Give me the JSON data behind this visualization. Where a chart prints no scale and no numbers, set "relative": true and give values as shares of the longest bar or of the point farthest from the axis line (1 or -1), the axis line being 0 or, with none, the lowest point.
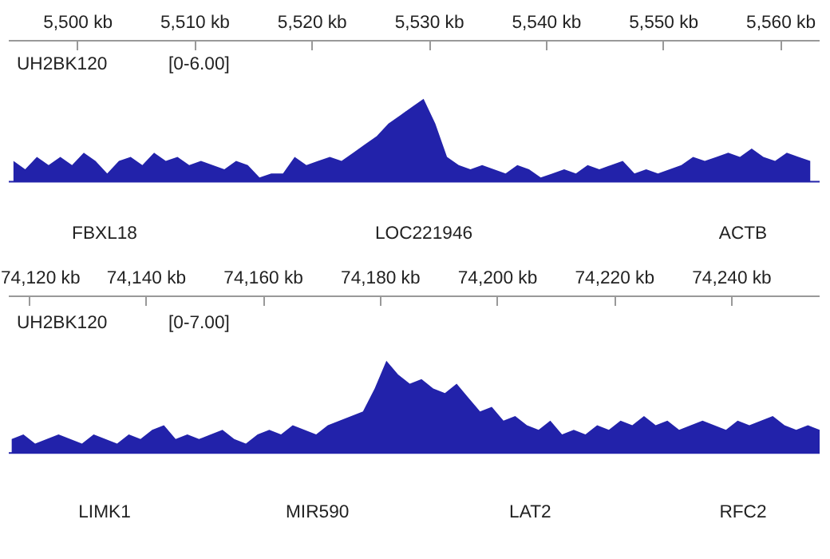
{
  "chart_data": [
    {
      "type": "area",
      "title": "UH2BK120",
      "relative": true,
      "color": "#2222aa",
      "grid": false,
      "tick_labels": "x",
      "xlim": [
        5494.1,
        5563.3
      ],
      "xticks": [
        {
          "value": 5500,
          "label": "5,500 kb"
        },
        {
          "value": 5510,
          "label": "5,510 kb"
        },
        {
          "value": 5520,
          "label": "5,520 kb"
        },
        {
          "value": 5530,
          "label": "5,530 kb"
        },
        {
          "value": 5540,
          "label": "5,540 kb"
        },
        {
          "value": 5550,
          "label": "5,550 kb"
        },
        {
          "value": 5560,
          "label": "5,560 kb"
        }
      ],
      "annotations": [
        "[0-6.00]",
        "FBXL18",
        "LOC221946",
        "ACTB"
      ],
      "x": [
        5494.5,
        5495.5,
        5496.5,
        5497.5,
        5498.5,
        5499.5,
        5500.5,
        5501.5,
        5502.5,
        5503.5,
        5504.5,
        5505.5,
        5506.5,
        5507.5,
        5508.5,
        5509.5,
        5510.5,
        5511.5,
        5512.5,
        5513.5,
        5514.5,
        5515.5,
        5516.5,
        5517.5,
        5518.5,
        5519.5,
        5520.5,
        5521.5,
        5522.5,
        5523.5,
        5524.5,
        5525.5,
        5526.5,
        5527.5,
        5528.5,
        5529.5,
        5530.5,
        5531.5,
        5532.5,
        5533.5,
        5534.5,
        5535.5,
        5536.5,
        5537.5,
        5538.5,
        5539.5,
        5540.5,
        5541.5,
        5542.5,
        5543.5,
        5544.5,
        5545.5,
        5546.5,
        5547.5,
        5548.5,
        5549.5,
        5550.5,
        5551.5,
        5552.5,
        5553.5,
        5554.5,
        5555.5,
        5556.5,
        5557.5,
        5558.5,
        5559.5,
        5560.5,
        5561.5,
        5562.5
      ],
      "values": [
        0.25,
        0.15,
        0.3,
        0.2,
        0.3,
        0.2,
        0.35,
        0.25,
        0.1,
        0.25,
        0.3,
        0.2,
        0.35,
        0.25,
        0.3,
        0.2,
        0.25,
        0.2,
        0.15,
        0.25,
        0.2,
        0.05,
        0.1,
        0.1,
        0.3,
        0.2,
        0.25,
        0.3,
        0.25,
        0.35,
        0.45,
        0.55,
        0.7,
        0.8,
        0.9,
        1.0,
        0.7,
        0.3,
        0.2,
        0.15,
        0.2,
        0.15,
        0.1,
        0.2,
        0.15,
        0.05,
        0.1,
        0.15,
        0.1,
        0.2,
        0.15,
        0.2,
        0.25,
        0.1,
        0.15,
        0.1,
        0.15,
        0.2,
        0.3,
        0.25,
        0.3,
        0.35,
        0.3,
        0.4,
        0.3,
        0.25,
        0.35,
        0.3,
        0.25
      ]
    },
    {
      "type": "area",
      "title": "UH2BK120",
      "relative": true,
      "color": "#2222aa",
      "grid": false,
      "tick_labels": "x",
      "xlim": [
        74116.5,
        74255
      ],
      "xticks": [
        {
          "value": 74120,
          "label": "74,120 kb"
        },
        {
          "value": 74140,
          "label": "74,140 kb"
        },
        {
          "value": 74160,
          "label": "74,160 kb"
        },
        {
          "value": 74180,
          "label": "74,180 kb"
        },
        {
          "value": 74200,
          "label": "74,200 kb"
        },
        {
          "value": 74220,
          "label": "74,220 kb"
        },
        {
          "value": 74240,
          "label": "74,240 kb"
        }
      ],
      "annotations": [
        "[0-7.00]",
        "LIMK1",
        "MIR590",
        "LAT2",
        "RFC2"
      ],
      "x": [
        74117,
        74119,
        74121,
        74123,
        74125,
        74127,
        74129,
        74131,
        74133,
        74135,
        74137,
        74139,
        74141,
        74143,
        74145,
        74147,
        74149,
        74151,
        74153,
        74155,
        74157,
        74159,
        74161,
        74163,
        74165,
        74167,
        74169,
        74171,
        74173,
        74175,
        74177,
        74179,
        74181,
        74183,
        74185,
        74187,
        74189,
        74191,
        74193,
        74195,
        74197,
        74199,
        74201,
        74203,
        74205,
        74207,
        74209,
        74211,
        74213,
        74215,
        74217,
        74219,
        74221,
        74223,
        74225,
        74227,
        74229,
        74231,
        74233,
        74235,
        74237,
        74239,
        74241,
        74243,
        74245,
        74247,
        74249,
        74251,
        74253,
        74255
      ],
      "values": [
        0.15,
        0.2,
        0.1,
        0.15,
        0.2,
        0.15,
        0.1,
        0.2,
        0.15,
        0.1,
        0.2,
        0.15,
        0.25,
        0.3,
        0.15,
        0.2,
        0.15,
        0.2,
        0.25,
        0.15,
        0.1,
        0.2,
        0.25,
        0.2,
        0.3,
        0.25,
        0.2,
        0.3,
        0.35,
        0.4,
        0.45,
        0.7,
        1.0,
        0.85,
        0.75,
        0.8,
        0.7,
        0.65,
        0.75,
        0.6,
        0.45,
        0.5,
        0.35,
        0.4,
        0.3,
        0.25,
        0.35,
        0.2,
        0.25,
        0.2,
        0.3,
        0.25,
        0.35,
        0.3,
        0.4,
        0.3,
        0.35,
        0.25,
        0.3,
        0.35,
        0.3,
        0.25,
        0.35,
        0.3,
        0.35,
        0.4,
        0.3,
        0.25,
        0.3,
        0.25
      ]
    }
  ]
}
